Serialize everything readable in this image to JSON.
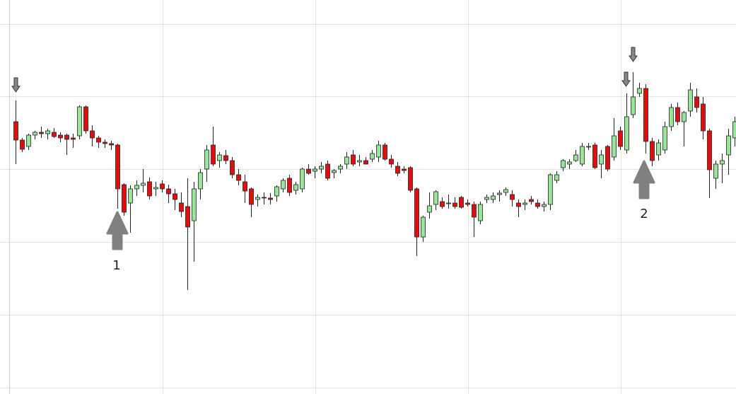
{
  "chart_data": {
    "type": "candlestick",
    "x": [
      0,
      1,
      2,
      3,
      4,
      5,
      6,
      7,
      8,
      9,
      10,
      11,
      12,
      13,
      14,
      15,
      16,
      17,
      18,
      19,
      20,
      21,
      22,
      23,
      24,
      25,
      26,
      27,
      28,
      29,
      30,
      31,
      32,
      33,
      34,
      35,
      36,
      37,
      38,
      39,
      40,
      41,
      42,
      43,
      44,
      45,
      46,
      47,
      48,
      49,
      50,
      51,
      52,
      53,
      54,
      55,
      56,
      57,
      58,
      59,
      60,
      61,
      62,
      63,
      64,
      65,
      66,
      67,
      68,
      69,
      70,
      71,
      72,
      73,
      74,
      75,
      76,
      77,
      78,
      79,
      80,
      81,
      82,
      83,
      84,
      85,
      86,
      87,
      88,
      89,
      90,
      91,
      92,
      93,
      94,
      95,
      96,
      97,
      98,
      99,
      100,
      101,
      102,
      103,
      104,
      105,
      106,
      107,
      108,
      109,
      110,
      111,
      112,
      113
    ],
    "open": [
      385,
      359,
      350,
      366,
      370,
      368,
      370,
      366,
      366,
      362,
      365,
      406,
      372,
      362,
      356,
      354,
      352,
      296,
      270,
      290,
      295,
      300,
      290,
      297,
      290,
      283,
      270,
      265,
      245,
      290,
      318,
      352,
      330,
      337,
      330,
      310,
      300,
      290,
      275,
      278,
      277,
      280,
      290,
      305,
      288,
      290,
      318,
      315,
      318,
      325,
      313,
      318,
      325,
      338,
      328,
      330,
      332,
      335,
      352,
      332,
      322,
      318,
      320,
      290,
      222,
      257,
      268,
      272,
      270,
      270,
      278,
      270,
      268,
      245,
      275,
      275,
      282,
      285,
      282,
      270,
      268,
      275,
      270,
      265,
      268,
      302,
      320,
      325,
      330,
      325,
      350,
      352,
      325,
      350,
      335,
      372,
      345,
      395,
      425,
      432,
      357,
      338,
      345,
      378,
      405,
      385,
      400,
      420,
      410,
      372,
      305,
      325,
      338,
      362
    ],
    "high": [
      415,
      362,
      368,
      372,
      378,
      375,
      376,
      370,
      368,
      368,
      408,
      408,
      380,
      365,
      360,
      358,
      354,
      298,
      295,
      302,
      318,
      306,
      300,
      302,
      296,
      290,
      285,
      305,
      300,
      318,
      352,
      378,
      342,
      345,
      335,
      318,
      310,
      292,
      282,
      285,
      284,
      295,
      305,
      310,
      300,
      320,
      325,
      322,
      328,
      330,
      318,
      325,
      342,
      345,
      338,
      335,
      345,
      358,
      355,
      338,
      328,
      322,
      322,
      292,
      252,
      285,
      288,
      278,
      282,
      278,
      280,
      275,
      272,
      272,
      282,
      285,
      288,
      292,
      288,
      275,
      275,
      280,
      275,
      272,
      312,
      315,
      332,
      332,
      345,
      355,
      355,
      355,
      345,
      352,
      390,
      378,
      425,
      455,
      440,
      438,
      362,
      360,
      385,
      410,
      412,
      400,
      440,
      432,
      420,
      375,
      330,
      340,
      375,
      392
    ],
    "low": [
      325,
      342,
      345,
      360,
      362,
      360,
      362,
      356,
      338,
      348,
      360,
      368,
      350,
      348,
      348,
      345,
      262,
      252,
      228,
      280,
      285,
      275,
      280,
      285,
      270,
      260,
      250,
      147,
      187,
      275,
      300,
      322,
      320,
      325,
      305,
      295,
      270,
      250,
      265,
      268,
      268,
      272,
      285,
      280,
      282,
      285,
      310,
      305,
      312,
      302,
      305,
      312,
      318,
      322,
      322,
      325,
      328,
      328,
      330,
      320,
      308,
      312,
      285,
      195,
      215,
      248,
      260,
      262,
      262,
      262,
      262,
      265,
      222,
      240,
      270,
      270,
      272,
      280,
      265,
      250,
      260,
      268,
      262,
      258,
      260,
      298,
      315,
      318,
      328,
      322,
      345,
      318,
      305,
      315,
      330,
      345,
      340,
      390,
      420,
      340,
      322,
      330,
      340,
      372,
      380,
      350,
      392,
      398,
      360,
      277,
      290,
      298,
      310,
      350
    ],
    "close": [
      359,
      346,
      366,
      370,
      368,
      372,
      364,
      362,
      360,
      360,
      406,
      372,
      362,
      356,
      354,
      352,
      290,
      257,
      290,
      295,
      298,
      280,
      292,
      290,
      283,
      275,
      258,
      236,
      290,
      313,
      345,
      325,
      338,
      330,
      310,
      302,
      287,
      268,
      278,
      277,
      275,
      293,
      302,
      285,
      296,
      318,
      312,
      318,
      322,
      305,
      316,
      322,
      335,
      325,
      330,
      325,
      340,
      352,
      332,
      325,
      312,
      316,
      288,
      222,
      250,
      266,
      286,
      265,
      270,
      265,
      264,
      268,
      250,
      268,
      278,
      280,
      284,
      289,
      275,
      265,
      270,
      272,
      265,
      268,
      310,
      310,
      330,
      328,
      338,
      350,
      350,
      320,
      338,
      318,
      365,
      350,
      392,
      420,
      432,
      357,
      330,
      355,
      378,
      405,
      385,
      398,
      430,
      405,
      372,
      317,
      325,
      330,
      365,
      385
    ],
    "up_color": "#98e498",
    "down_color": "#e20e0e",
    "xlim": [
      -2.44,
      113.22
    ],
    "ylim": [
      0,
      557
    ],
    "xticks": [
      -1,
      23.1,
      47.1,
      71.1,
      95.1
    ],
    "yticks": [
      9,
      112,
      215,
      318,
      421,
      523
    ],
    "grid": true,
    "annotations": [
      {
        "text": "1"
      },
      {
        "text": "2"
      }
    ]
  }
}
